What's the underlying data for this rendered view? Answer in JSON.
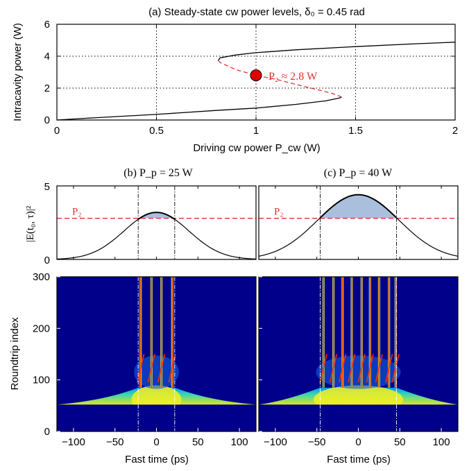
{
  "colors": {
    "curve": "#000000",
    "unstable": "#e03030",
    "marker_fill": "#e00000",
    "shade": "#a9bfdc",
    "p2_line": "#e03030"
  },
  "chart_data": [
    {
      "type": "line",
      "panel": "a",
      "title": "(a) Steady-state cw power levels, δ₀ = 0.45 rad",
      "xlabel": "Driving cw power P_cw (W)",
      "ylabel": "Intracavity power (W)",
      "xlim": [
        0,
        2
      ],
      "ylim": [
        0,
        6
      ],
      "xticks": [
        0,
        0.5,
        1,
        1.5,
        2
      ],
      "xtick_labels": [
        "0",
        "0.5",
        "1",
        "1.5",
        "2"
      ],
      "yticks": [
        0,
        2,
        4,
        6
      ],
      "ytick_labels": [
        "0",
        "2",
        "4",
        "6"
      ],
      "grid": "dotted at ticks",
      "series": [
        {
          "style": "solid",
          "x": [
            0,
            0.2,
            0.5,
            0.8,
            1.0,
            1.2,
            1.35,
            1.42,
            1.43
          ],
          "y": [
            0,
            0.15,
            0.35,
            0.6,
            0.75,
            0.98,
            1.2,
            1.38,
            1.45
          ]
        },
        {
          "style": "dashed",
          "x": [
            1.43,
            1.38,
            1.25,
            1.1,
            1.0,
            0.9,
            0.82,
            0.81
          ],
          "y": [
            1.45,
            1.68,
            2.08,
            2.55,
            2.8,
            3.15,
            3.6,
            3.72
          ]
        },
        {
          "style": "solid",
          "x": [
            0.81,
            0.82,
            0.9,
            1.0,
            1.2,
            1.5,
            1.8,
            2.0
          ],
          "y": [
            3.72,
            3.9,
            4.08,
            4.22,
            4.4,
            4.6,
            4.78,
            4.88
          ]
        }
      ],
      "marker": {
        "x": 1.0,
        "y": 2.8
      },
      "annotation": "P₂ ≈ 2.8 W"
    },
    {
      "type": "line",
      "panel": "b",
      "title": "(b) P_p = 25 W",
      "ylabel": "|E(t₀, τ)|²",
      "xlim": [
        -120,
        120
      ],
      "ylim": [
        0,
        5
      ],
      "yticks": [
        0,
        5
      ],
      "ytick_labels": [
        "0",
        "5"
      ],
      "p2_level": 2.8,
      "p2_label": "P₂",
      "curve": {
        "amplitude": 3.2,
        "sigma_ps": 39
      },
      "shaded_region": [
        -22,
        22
      ],
      "vlines": [
        -22,
        22
      ]
    },
    {
      "type": "line",
      "panel": "c",
      "title": "(c) P_p = 40 W",
      "xlim": [
        -120,
        120
      ],
      "ylim": [
        0,
        5
      ],
      "p2_level": 2.8,
      "p2_label": "P₂",
      "curve": {
        "amplitude": 4.4,
        "sigma_ps": 49
      },
      "shaded_region": [
        -46,
        46
      ],
      "vlines": [
        -46,
        46
      ]
    },
    {
      "type": "heatmap",
      "panel": "b",
      "xlabel": "Fast time (ps)",
      "ylabel": "Roundtrip index",
      "xlim": [
        -120,
        120
      ],
      "ylim": [
        0,
        300
      ],
      "xticks": [
        -100,
        -50,
        0,
        50,
        100
      ],
      "xtick_labels": [
        "−100",
        "−50",
        "0",
        "50",
        "100"
      ],
      "yticks": [
        0,
        100,
        200,
        300
      ],
      "ytick_labels": [
        "0",
        "100",
        "200",
        "300"
      ],
      "vlines": [
        -22,
        22
      ],
      "soliton_positions_ps": [
        -19,
        -6,
        6,
        19
      ],
      "colormap": "jet"
    },
    {
      "type": "heatmap",
      "panel": "c",
      "xlabel": "Fast time (ps)",
      "xlim": [
        -120,
        120
      ],
      "ylim": [
        0,
        300
      ],
      "xticks": [
        -100,
        -50,
        0,
        50,
        100
      ],
      "xtick_labels": [
        "−100",
        "−50",
        "0",
        "50",
        "100"
      ],
      "vlines": [
        -46,
        46
      ],
      "soliton_positions_ps": [
        -42,
        -30,
        -19,
        -8,
        4,
        14,
        25,
        37,
        45
      ],
      "colormap": "jet"
    }
  ]
}
